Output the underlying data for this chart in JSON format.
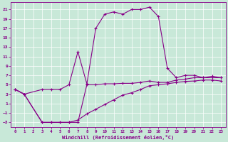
{
  "xlabel": "Windchill (Refroidissement éolien,°C)",
  "background_color": "#c8e8d8",
  "line_color": "#880088",
  "xlim": [
    -0.5,
    23.5
  ],
  "ylim": [
    -4,
    22.5
  ],
  "xticks": [
    0,
    1,
    2,
    3,
    4,
    5,
    6,
    7,
    8,
    9,
    10,
    11,
    12,
    13,
    14,
    15,
    16,
    17,
    18,
    19,
    20,
    21,
    22,
    23
  ],
  "yticks": [
    -3,
    -1,
    1,
    3,
    5,
    7,
    9,
    11,
    13,
    15,
    17,
    19,
    21
  ],
  "line1_x": [
    0,
    1,
    3,
    4,
    5,
    6,
    7,
    8,
    9,
    10,
    11,
    12,
    13,
    14,
    15,
    16,
    17,
    18,
    19,
    20,
    21,
    22,
    23
  ],
  "line1_y": [
    4,
    3,
    4,
    4,
    4,
    5,
    12,
    5.2,
    17,
    20,
    20.5,
    20,
    21,
    21,
    21.5,
    19.5,
    8.5,
    6.5,
    7,
    7,
    6.5,
    6.5,
    6.5
  ],
  "line2_x": [
    0,
    1,
    3,
    4,
    5,
    6,
    7,
    8,
    9,
    10,
    11,
    12,
    13,
    14,
    15,
    16,
    17,
    18,
    19,
    20,
    21,
    22,
    23
  ],
  "line2_y": [
    4,
    3,
    -3,
    -3,
    -3,
    -3,
    -3,
    5.0,
    5.0,
    5.2,
    5.2,
    5.3,
    5.3,
    5.5,
    5.8,
    5.5,
    5.5,
    6.0,
    6.2,
    6.5,
    6.5,
    6.8,
    6.5
  ],
  "line3_x": [
    0,
    1,
    3,
    4,
    5,
    6,
    7,
    8,
    9,
    10,
    11,
    12,
    13,
    14,
    15,
    16,
    17,
    18,
    19,
    20,
    21,
    22,
    23
  ],
  "line3_y": [
    4,
    3,
    -3,
    -3,
    -3,
    -3,
    -2.5,
    -1.2,
    -0.2,
    0.8,
    1.8,
    2.8,
    3.3,
    4.0,
    4.8,
    5.0,
    5.2,
    5.5,
    5.7,
    5.8,
    6.0,
    6.0,
    5.8
  ]
}
